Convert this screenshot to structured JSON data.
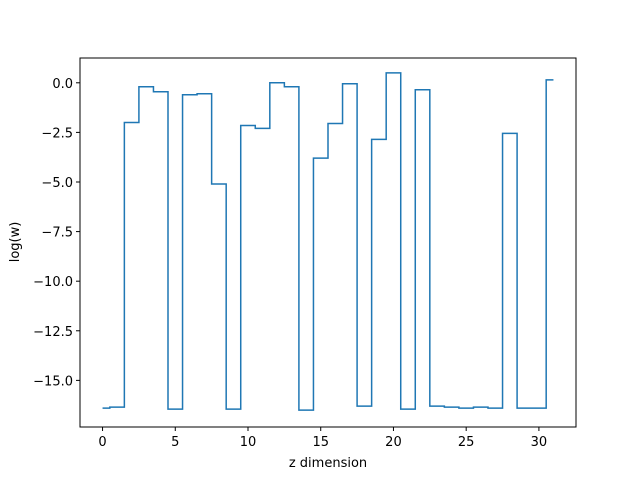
{
  "chart_data": {
    "type": "line",
    "drawstyle": "steps-mid",
    "title": "",
    "xlabel": "z dimension",
    "ylabel": "log(w)",
    "xlim": [
      -1.55,
      32.55
    ],
    "ylim": [
      -17.35,
      1.25
    ],
    "xticks": [
      0,
      5,
      10,
      15,
      20,
      25,
      30
    ],
    "xtick_labels": [
      "0",
      "5",
      "10",
      "15",
      "20",
      "25",
      "30"
    ],
    "yticks": [
      0.0,
      -2.5,
      -5.0,
      -7.5,
      -10.0,
      -12.5,
      -15.0
    ],
    "ytick_labels": [
      "0.0",
      "−2.5",
      "−5.0",
      "−7.5",
      "−10.0",
      "−12.5",
      "−15.0"
    ],
    "grid": false,
    "legend": "none",
    "line_color": "#1f77b4",
    "series": [
      {
        "x": [
          0,
          1,
          2,
          3,
          4,
          5,
          6,
          7,
          8,
          9,
          10,
          11,
          12,
          13,
          14,
          15,
          16,
          17,
          18,
          19,
          20,
          21,
          22,
          23,
          24,
          25,
          26,
          27,
          28,
          29,
          30,
          31
        ],
        "values": [
          -16.4,
          -16.35,
          -2.0,
          -0.2,
          -0.45,
          -16.45,
          -0.6,
          -0.55,
          -5.1,
          -16.45,
          -2.15,
          -2.3,
          0.0,
          -0.2,
          -16.5,
          -3.8,
          -2.05,
          -0.05,
          -16.3,
          -2.85,
          0.5,
          -16.45,
          -0.35,
          -16.3,
          -16.35,
          -16.4,
          -16.35,
          -16.4,
          -2.55,
          -16.4,
          -16.4,
          0.15
        ]
      }
    ]
  }
}
